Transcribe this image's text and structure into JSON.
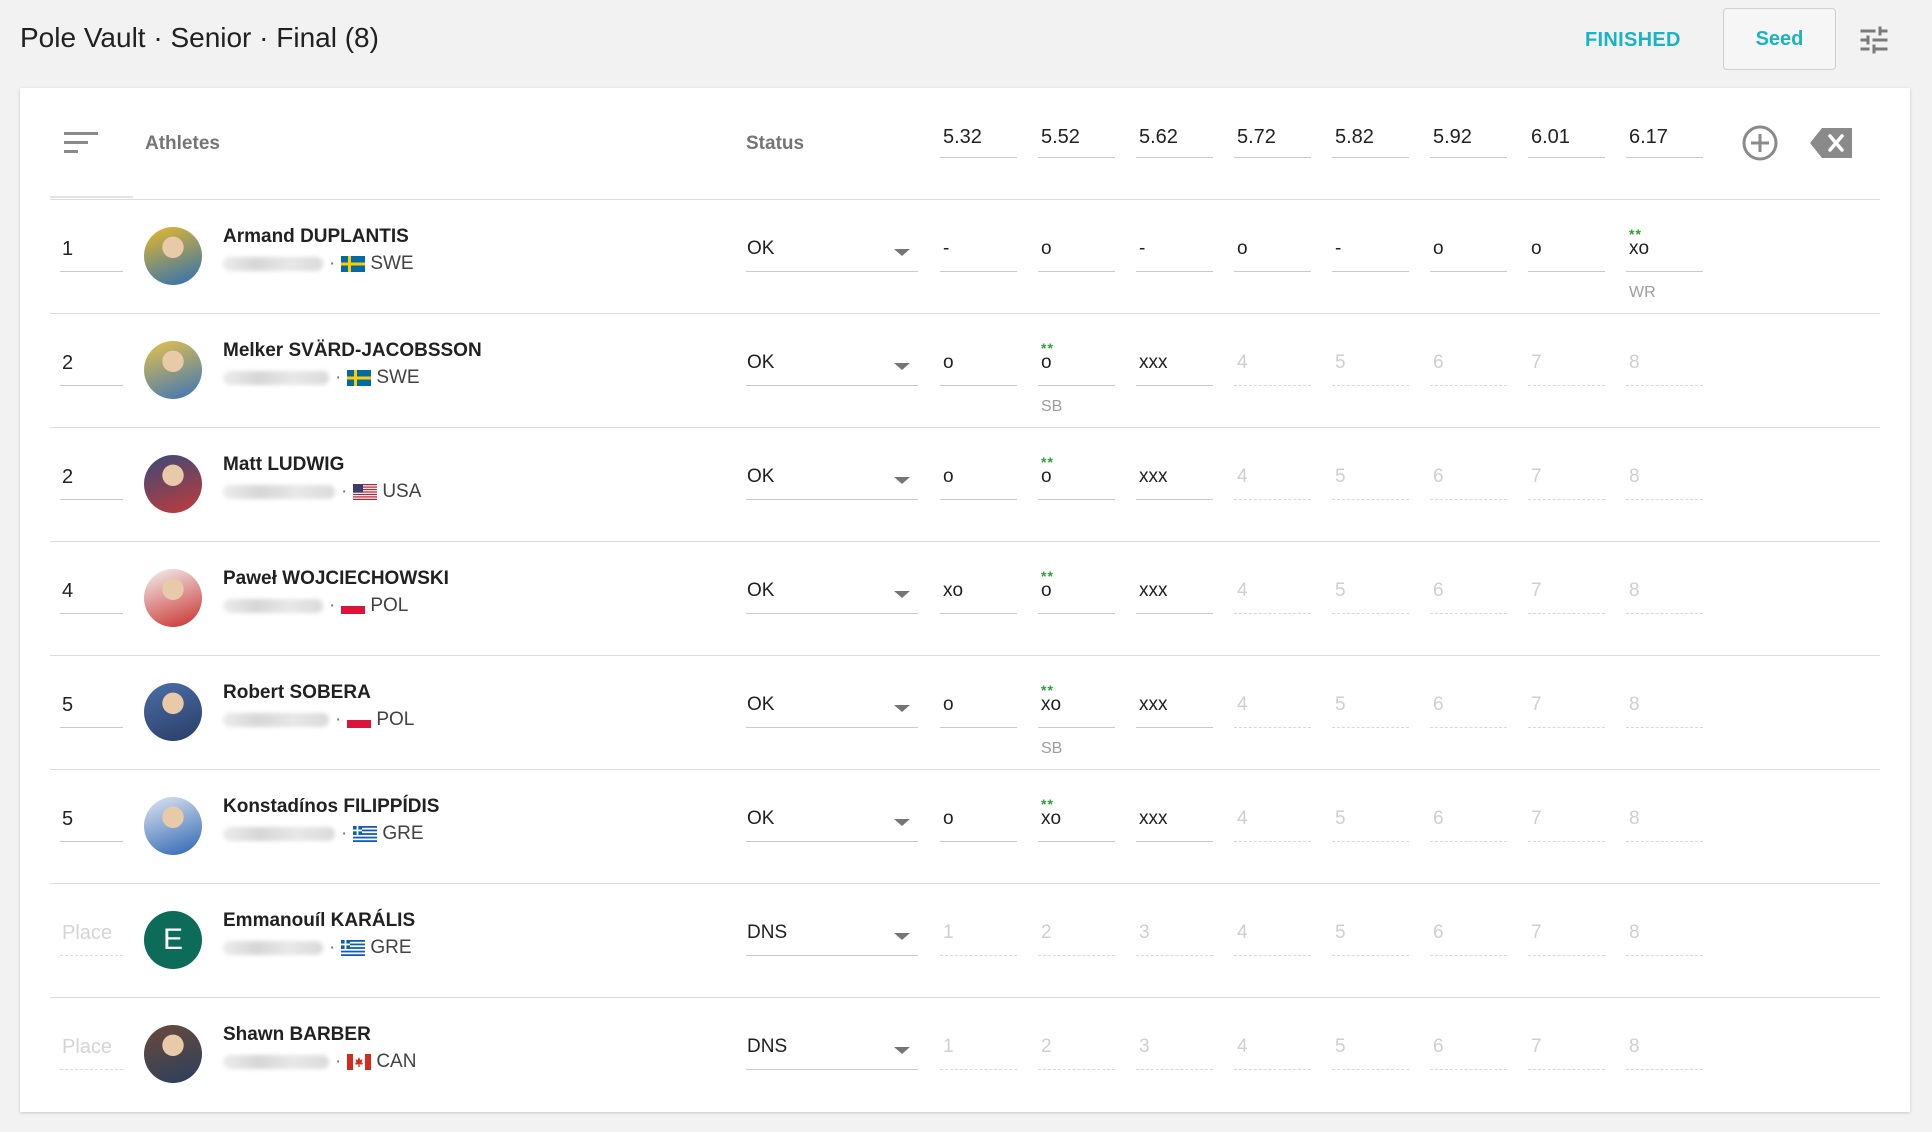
{
  "header": {
    "title": "Pole Vault · Senior · Final (8)",
    "status": "FINISHED",
    "seed_label": "Seed",
    "icons": {
      "settings": "tune-icon"
    }
  },
  "table": {
    "athletes_header": "Athletes",
    "status_header": "Status",
    "heights": [
      "5.32",
      "5.52",
      "5.62",
      "5.72",
      "5.82",
      "5.92",
      "6.01",
      "6.17"
    ],
    "icons": {
      "sort": "sort-icon",
      "add": "add-circle-icon",
      "clear": "backspace-icon"
    },
    "rows": [
      {
        "place": "1",
        "name": "Armand DUPLANTIS",
        "country": "SWE",
        "status": "OK",
        "attempts": [
          "-",
          "o",
          "-",
          "o",
          "-",
          "o",
          "o",
          "xo"
        ],
        "stars_at": 7,
        "stars": "**",
        "note_at": 7,
        "note": "WR",
        "avatar_colors": [
          "#e9b92a",
          "#2a6fb5"
        ]
      },
      {
        "place": "2",
        "name": "Melker SVÄRD-JACOBSSON",
        "country": "SWE",
        "status": "OK",
        "attempts": [
          "o",
          "o",
          "xxx",
          "4",
          "5",
          "6",
          "7",
          "8"
        ],
        "stars_at": 1,
        "stars": "**",
        "note_at": 1,
        "note": "SB",
        "avatar_colors": [
          "#e6c34a",
          "#3b73b8"
        ]
      },
      {
        "place": "2",
        "name": "Matt LUDWIG",
        "country": "USA",
        "status": "OK",
        "attempts": [
          "o",
          "o",
          "xxx",
          "4",
          "5",
          "6",
          "7",
          "8"
        ],
        "stars_at": 1,
        "stars": "**",
        "avatar_colors": [
          "#3b4a78",
          "#c23b3b"
        ]
      },
      {
        "place": "4",
        "name": "Paweł WOJCIECHOWSKI",
        "country": "POL",
        "status": "OK",
        "attempts": [
          "xo",
          "o",
          "xxx",
          "4",
          "5",
          "6",
          "7",
          "8"
        ],
        "stars_at": 1,
        "stars": "**",
        "avatar_colors": [
          "#f2f2f2",
          "#c9302c"
        ]
      },
      {
        "place": "5",
        "name": "Robert SOBERA",
        "country": "POL",
        "status": "OK",
        "attempts": [
          "o",
          "xo",
          "xxx",
          "4",
          "5",
          "6",
          "7",
          "8"
        ],
        "stars_at": 1,
        "stars": "**",
        "note_at": 1,
        "note": "SB",
        "avatar_colors": [
          "#4a6ea8",
          "#2b3d66"
        ]
      },
      {
        "place": "5",
        "name": "Konstadínos FILIPPÍDIS",
        "country": "GRE",
        "status": "OK",
        "attempts": [
          "o",
          "xo",
          "xxx",
          "4",
          "5",
          "6",
          "7",
          "8"
        ],
        "stars_at": 1,
        "stars": "**",
        "avatar_colors": [
          "#dfe6f1",
          "#2d64b3"
        ]
      },
      {
        "place": "Place",
        "place_empty": true,
        "name": "Emmanouíl KARÁLIS",
        "country": "GRE",
        "status": "DNS",
        "attempts": [
          "1",
          "2",
          "3",
          "4",
          "5",
          "6",
          "7",
          "8"
        ],
        "avatar_letter": "E",
        "avatar_colors": [
          "#0d6b5a",
          "#0d6b5a"
        ]
      },
      {
        "place": "Place",
        "place_empty": true,
        "name": "Shawn BARBER",
        "country": "CAN",
        "status": "DNS",
        "attempts": [
          "1",
          "2",
          "3",
          "4",
          "5",
          "6",
          "7",
          "8"
        ],
        "avatar_colors": [
          "#6b4a3a",
          "#2a3f5e"
        ]
      }
    ]
  },
  "colors": {
    "accent": "#19b4c4",
    "stars": "#2e9e3a",
    "flag_swe": "#006aa7",
    "flag_pol": "#dc143c"
  }
}
